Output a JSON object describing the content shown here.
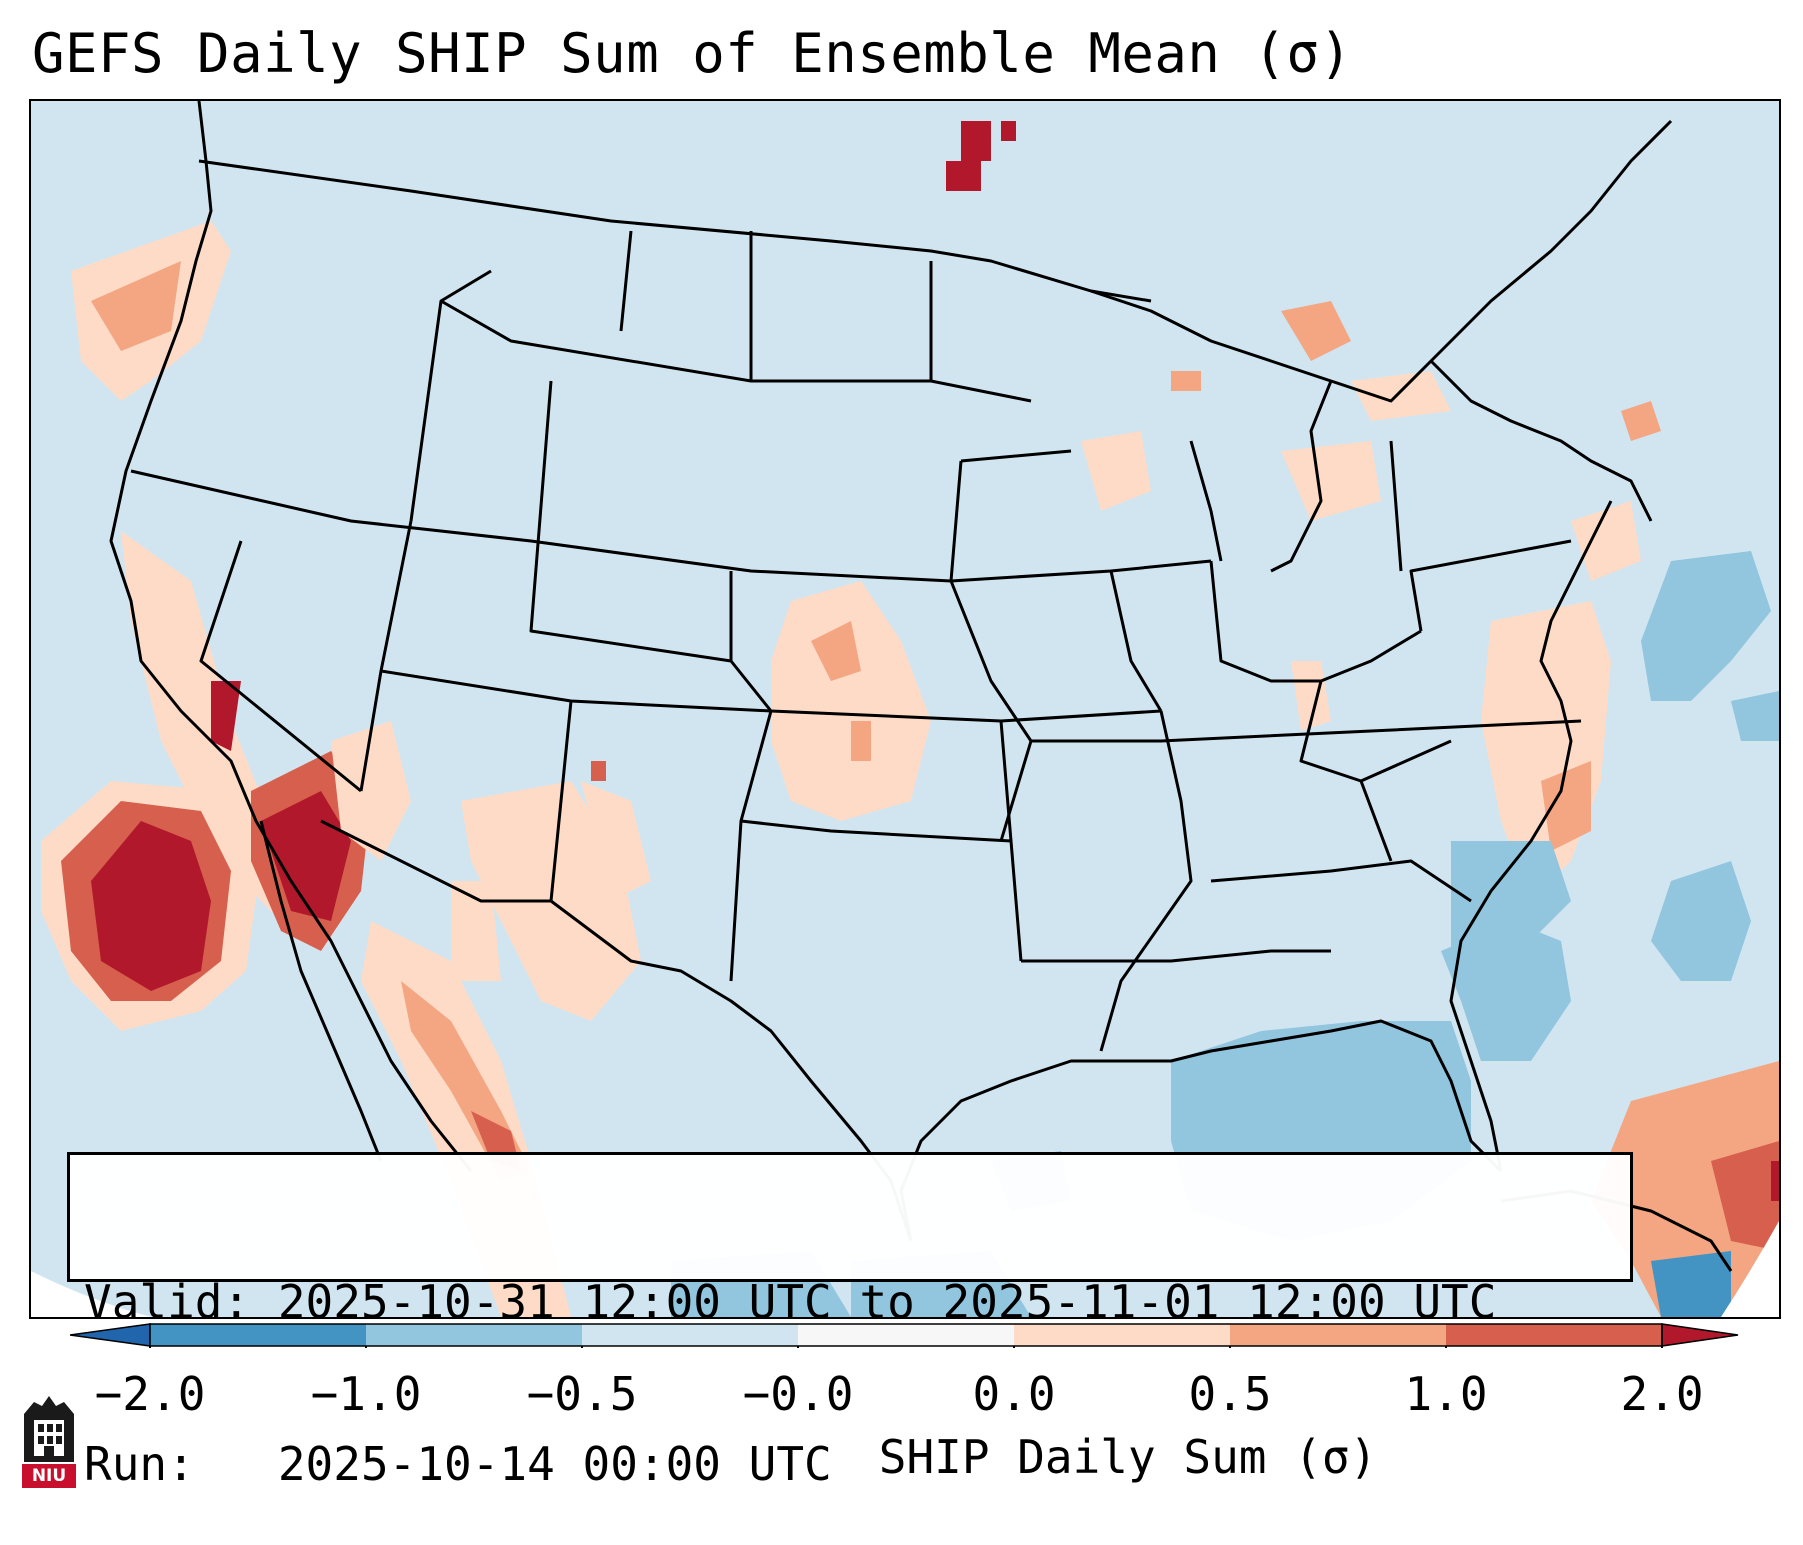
{
  "title": "GEFS Daily SHIP Sum of Ensemble Mean (σ)",
  "info_box": {
    "valid_line": "Valid: 2025-10-31 12:00 UTC to 2025-11-01 12:00 UTC",
    "run_line": "Run:   2025-10-14 00:00 UTC"
  },
  "colorbar": {
    "label": "SHIP Daily Sum (σ)",
    "tick_labels": [
      "−2.0",
      "−1.0",
      "−0.5",
      "−0.0",
      "0.0",
      "0.5",
      "1.0",
      "2.0"
    ],
    "bins": [
      {
        "range": "-2.0 to -1.0",
        "color": "#4393c3"
      },
      {
        "range": "-1.0 to -0.5",
        "color": "#92c5de"
      },
      {
        "range": "-0.5 to -0.0",
        "color": "#d1e5f0"
      },
      {
        "range": "-0.0 to 0.0",
        "color": "#f7f7f7"
      },
      {
        "range": "0.0 to 0.5",
        "color": "#fddbc7"
      },
      {
        "range": "0.5 to 1.0",
        "color": "#f4a582"
      },
      {
        "range": "1.0 to 2.0",
        "color": "#d6604d"
      }
    ],
    "extend_low_color": "#2166ac",
    "extend_high_color": "#b2182b"
  },
  "map": {
    "projection": "Lambert conformal, contiguous United States",
    "background_color": "#d1e5f0",
    "borders_color": "#000000",
    "shaded_region_notes": [
      "High SHIP off southern California / Baja",
      "Positive anomalies over Kansas and Nebraska",
      "Negative anomalies over Gulf of Mexico and western Atlantic",
      "Positive anomalies near the Caribbean"
    ]
  },
  "logo": {
    "text": "NIU",
    "color": "#c8102e"
  }
}
